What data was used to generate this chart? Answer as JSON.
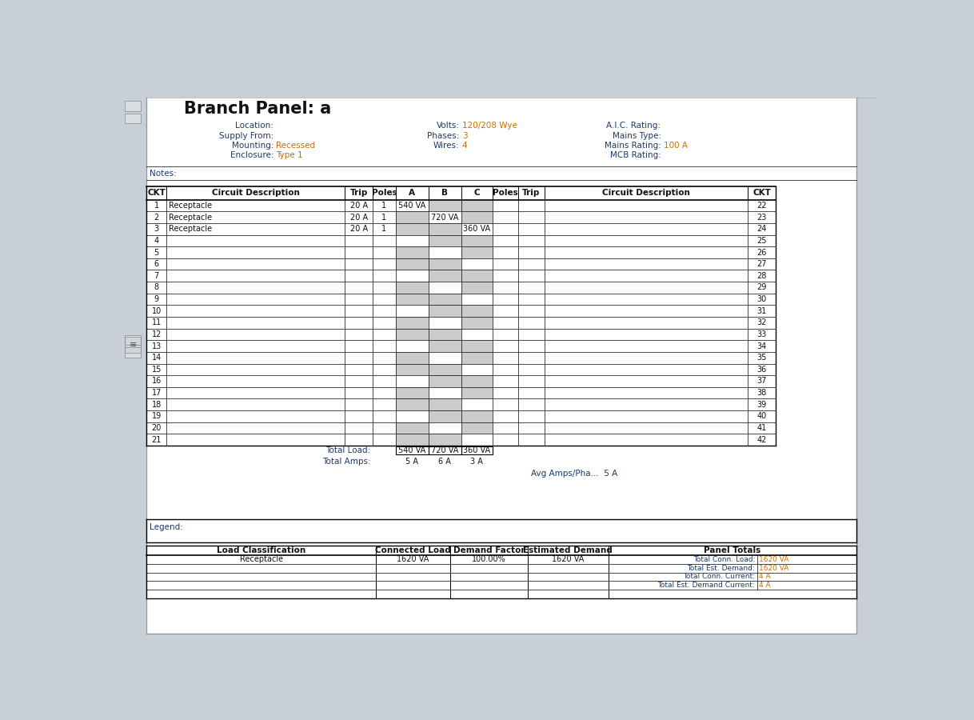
{
  "title": "Branch Panel: a",
  "header_info": {
    "left": [
      [
        "Location:",
        ""
      ],
      [
        "Supply From:",
        ""
      ],
      [
        "Mounting:",
        "Recessed"
      ],
      [
        "Enclosure:",
        "Type 1"
      ]
    ],
    "middle": [
      [
        "Volts:",
        "120/208 Wye"
      ],
      [
        "Phases:",
        "3"
      ],
      [
        "Wires:",
        "4"
      ]
    ],
    "right": [
      [
        "A.I.C. Rating:",
        ""
      ],
      [
        "Mains Type:",
        ""
      ],
      [
        "Mains Rating:",
        "100 A"
      ],
      [
        "MCB Rating:",
        ""
      ]
    ]
  },
  "notes_label": "Notes:",
  "circuit_rows": [
    {
      "ckt": "1",
      "desc": "Receptacle",
      "trip": "20 A",
      "poles": "1",
      "A": "540 VA",
      "B": "",
      "C": ""
    },
    {
      "ckt": "2",
      "desc": "Receptacle",
      "trip": "20 A",
      "poles": "1",
      "A": "",
      "B": "720 VA",
      "C": ""
    },
    {
      "ckt": "3",
      "desc": "Receptacle",
      "trip": "20 A",
      "poles": "1",
      "A": "",
      "B": "",
      "C": "360 VA"
    },
    {
      "ckt": "4",
      "desc": "",
      "trip": "",
      "poles": "",
      "A": "",
      "B": "",
      "C": ""
    },
    {
      "ckt": "5",
      "desc": "",
      "trip": "",
      "poles": "",
      "A": "",
      "B": "",
      "C": ""
    },
    {
      "ckt": "6",
      "desc": "",
      "trip": "",
      "poles": "",
      "A": "",
      "B": "",
      "C": ""
    },
    {
      "ckt": "7",
      "desc": "",
      "trip": "",
      "poles": "",
      "A": "",
      "B": "",
      "C": ""
    },
    {
      "ckt": "8",
      "desc": "",
      "trip": "",
      "poles": "",
      "A": "",
      "B": "",
      "C": ""
    },
    {
      "ckt": "9",
      "desc": "",
      "trip": "",
      "poles": "",
      "A": "",
      "B": "",
      "C": ""
    },
    {
      "ckt": "10",
      "desc": "",
      "trip": "",
      "poles": "",
      "A": "",
      "B": "",
      "C": ""
    },
    {
      "ckt": "11",
      "desc": "",
      "trip": "",
      "poles": "",
      "A": "",
      "B": "",
      "C": ""
    },
    {
      "ckt": "12",
      "desc": "",
      "trip": "",
      "poles": "",
      "A": "",
      "B": "",
      "C": ""
    },
    {
      "ckt": "13",
      "desc": "",
      "trip": "",
      "poles": "",
      "A": "",
      "B": "",
      "C": ""
    },
    {
      "ckt": "14",
      "desc": "",
      "trip": "",
      "poles": "",
      "A": "",
      "B": "",
      "C": ""
    },
    {
      "ckt": "15",
      "desc": "",
      "trip": "",
      "poles": "",
      "A": "",
      "B": "",
      "C": ""
    },
    {
      "ckt": "16",
      "desc": "",
      "trip": "",
      "poles": "",
      "A": "",
      "B": "",
      "C": ""
    },
    {
      "ckt": "17",
      "desc": "",
      "trip": "",
      "poles": "",
      "A": "",
      "B": "",
      "C": ""
    },
    {
      "ckt": "18",
      "desc": "",
      "trip": "",
      "poles": "",
      "A": "",
      "B": "",
      "C": ""
    },
    {
      "ckt": "19",
      "desc": "",
      "trip": "",
      "poles": "",
      "A": "",
      "B": "",
      "C": ""
    },
    {
      "ckt": "20",
      "desc": "",
      "trip": "",
      "poles": "",
      "A": "",
      "B": "",
      "C": ""
    },
    {
      "ckt": "21",
      "desc": "",
      "trip": "",
      "poles": "",
      "A": "",
      "B": "",
      "C": ""
    }
  ],
  "right_ckts": [
    "22",
    "23",
    "24",
    "25",
    "26",
    "27",
    "28",
    "29",
    "30",
    "31",
    "32",
    "33",
    "34",
    "35",
    "36",
    "37",
    "38",
    "39",
    "40",
    "41",
    "42"
  ],
  "totals": {
    "load_A": "540 VA",
    "load_B": "720 VA",
    "load_C": "360 VA",
    "amps_A": "5 A",
    "amps_B": "6 A",
    "amps_C": "3 A",
    "avg_amps": "Avg Amps/Pha...  5 A"
  },
  "legend_label": "Legend:",
  "summary_headers": [
    "Load Classification",
    "Connected Load",
    "Demand Factor",
    "Estimated Demand",
    "Panel Totals"
  ],
  "summary_row1": [
    "Receptacle",
    "1620 VA",
    "100.00%",
    "1620 VA"
  ],
  "panel_totals": [
    [
      "Total Conn. Load:",
      "1620 VA"
    ],
    [
      "Total Est. Demand:",
      "1620 VA"
    ],
    [
      "Total Conn. Current:",
      "4 A"
    ],
    [
      "Total Est. Demand Current:",
      "4 A"
    ]
  ],
  "bg_color": "#c8cfd6",
  "paper_color": "#ffffff",
  "label_color": "#1a3a6b",
  "value_color": "#c87000",
  "gray_cell": "#cccccc",
  "black": "#000000"
}
